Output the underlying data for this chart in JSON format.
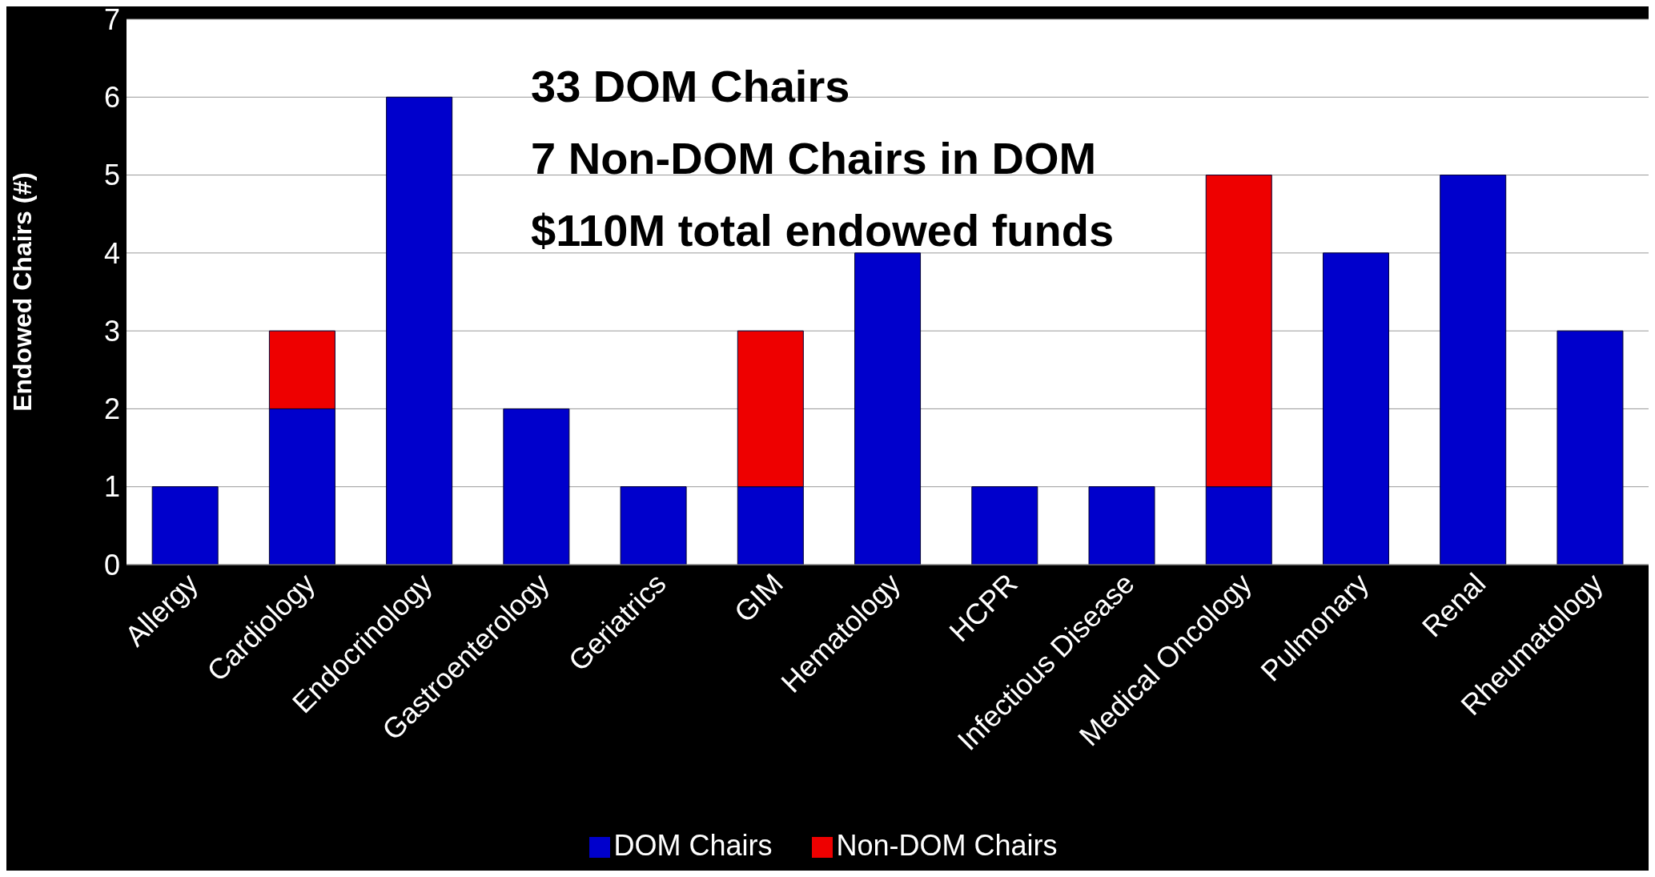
{
  "chart_data": {
    "type": "bar",
    "stacked": true,
    "ylabel": "Endowed Chairs (#)",
    "categories": [
      "Allergy",
      "Cardiology",
      "Endocrinology",
      "Gastroenterology",
      "Geriatrics",
      "GIM",
      "Hematology",
      "HCPR",
      "Infectious Disease",
      "Medical Oncology",
      "Pulmonary",
      "Renal",
      "Rheumatology"
    ],
    "series": [
      {
        "name": "DOM Chairs",
        "color": "#0000cc",
        "values": [
          1,
          2,
          6,
          2,
          1,
          1,
          4,
          1,
          1,
          1,
          4,
          5,
          3
        ]
      },
      {
        "name": "Non-DOM Chairs",
        "color": "#ee0000",
        "values": [
          null,
          1,
          null,
          null,
          null,
          2,
          null,
          null,
          null,
          4,
          null,
          null,
          null
        ]
      }
    ],
    "ylim": [
      0,
      7
    ],
    "yticks": [
      0,
      1,
      2,
      3,
      4,
      5,
      6,
      7
    ],
    "grid": "y",
    "legend": "bottom",
    "annotations": [
      "33 DOM Chairs",
      "7 Non-DOM Chairs in DOM",
      "$110M total endowed funds"
    ]
  }
}
